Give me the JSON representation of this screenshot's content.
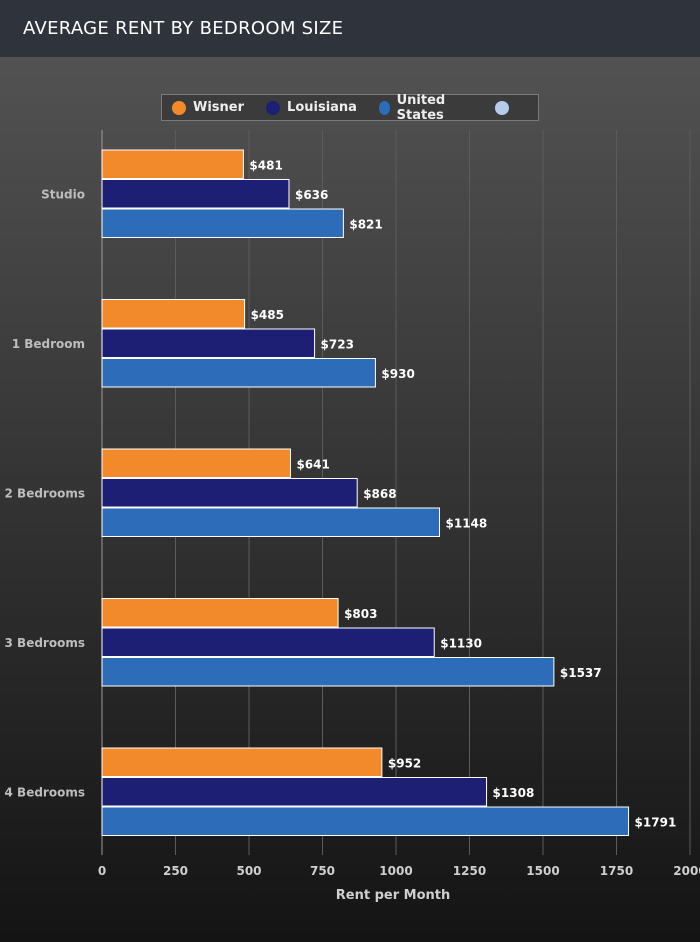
{
  "header": {
    "title": "AVERAGE RENT BY BEDROOM SIZE"
  },
  "chart_data": {
    "type": "bar",
    "orientation": "horizontal",
    "categories": [
      "Studio",
      "1 Bedroom",
      "2 Bedrooms",
      "3 Bedrooms",
      "4 Bedrooms"
    ],
    "series": [
      {
        "name": "Wisner",
        "color": "#f28a2c",
        "values": [
          481,
          485,
          641,
          803,
          952
        ]
      },
      {
        "name": "Louisiana",
        "color": "#1c1f73",
        "values": [
          636,
          723,
          868,
          1130,
          1308
        ]
      },
      {
        "name": "United States",
        "color": "#2d6cb8",
        "values": [
          821,
          930,
          1148,
          1537,
          1791
        ]
      }
    ],
    "legend_extra": {
      "color": "#b5cdea"
    },
    "xlabel": "Rent per Month",
    "xlim": [
      0,
      2000
    ],
    "xticks": [
      0,
      250,
      500,
      750,
      1000,
      1250,
      1500,
      1750,
      2000
    ],
    "value_prefix": "$",
    "grid": true,
    "legend_position": "top"
  }
}
